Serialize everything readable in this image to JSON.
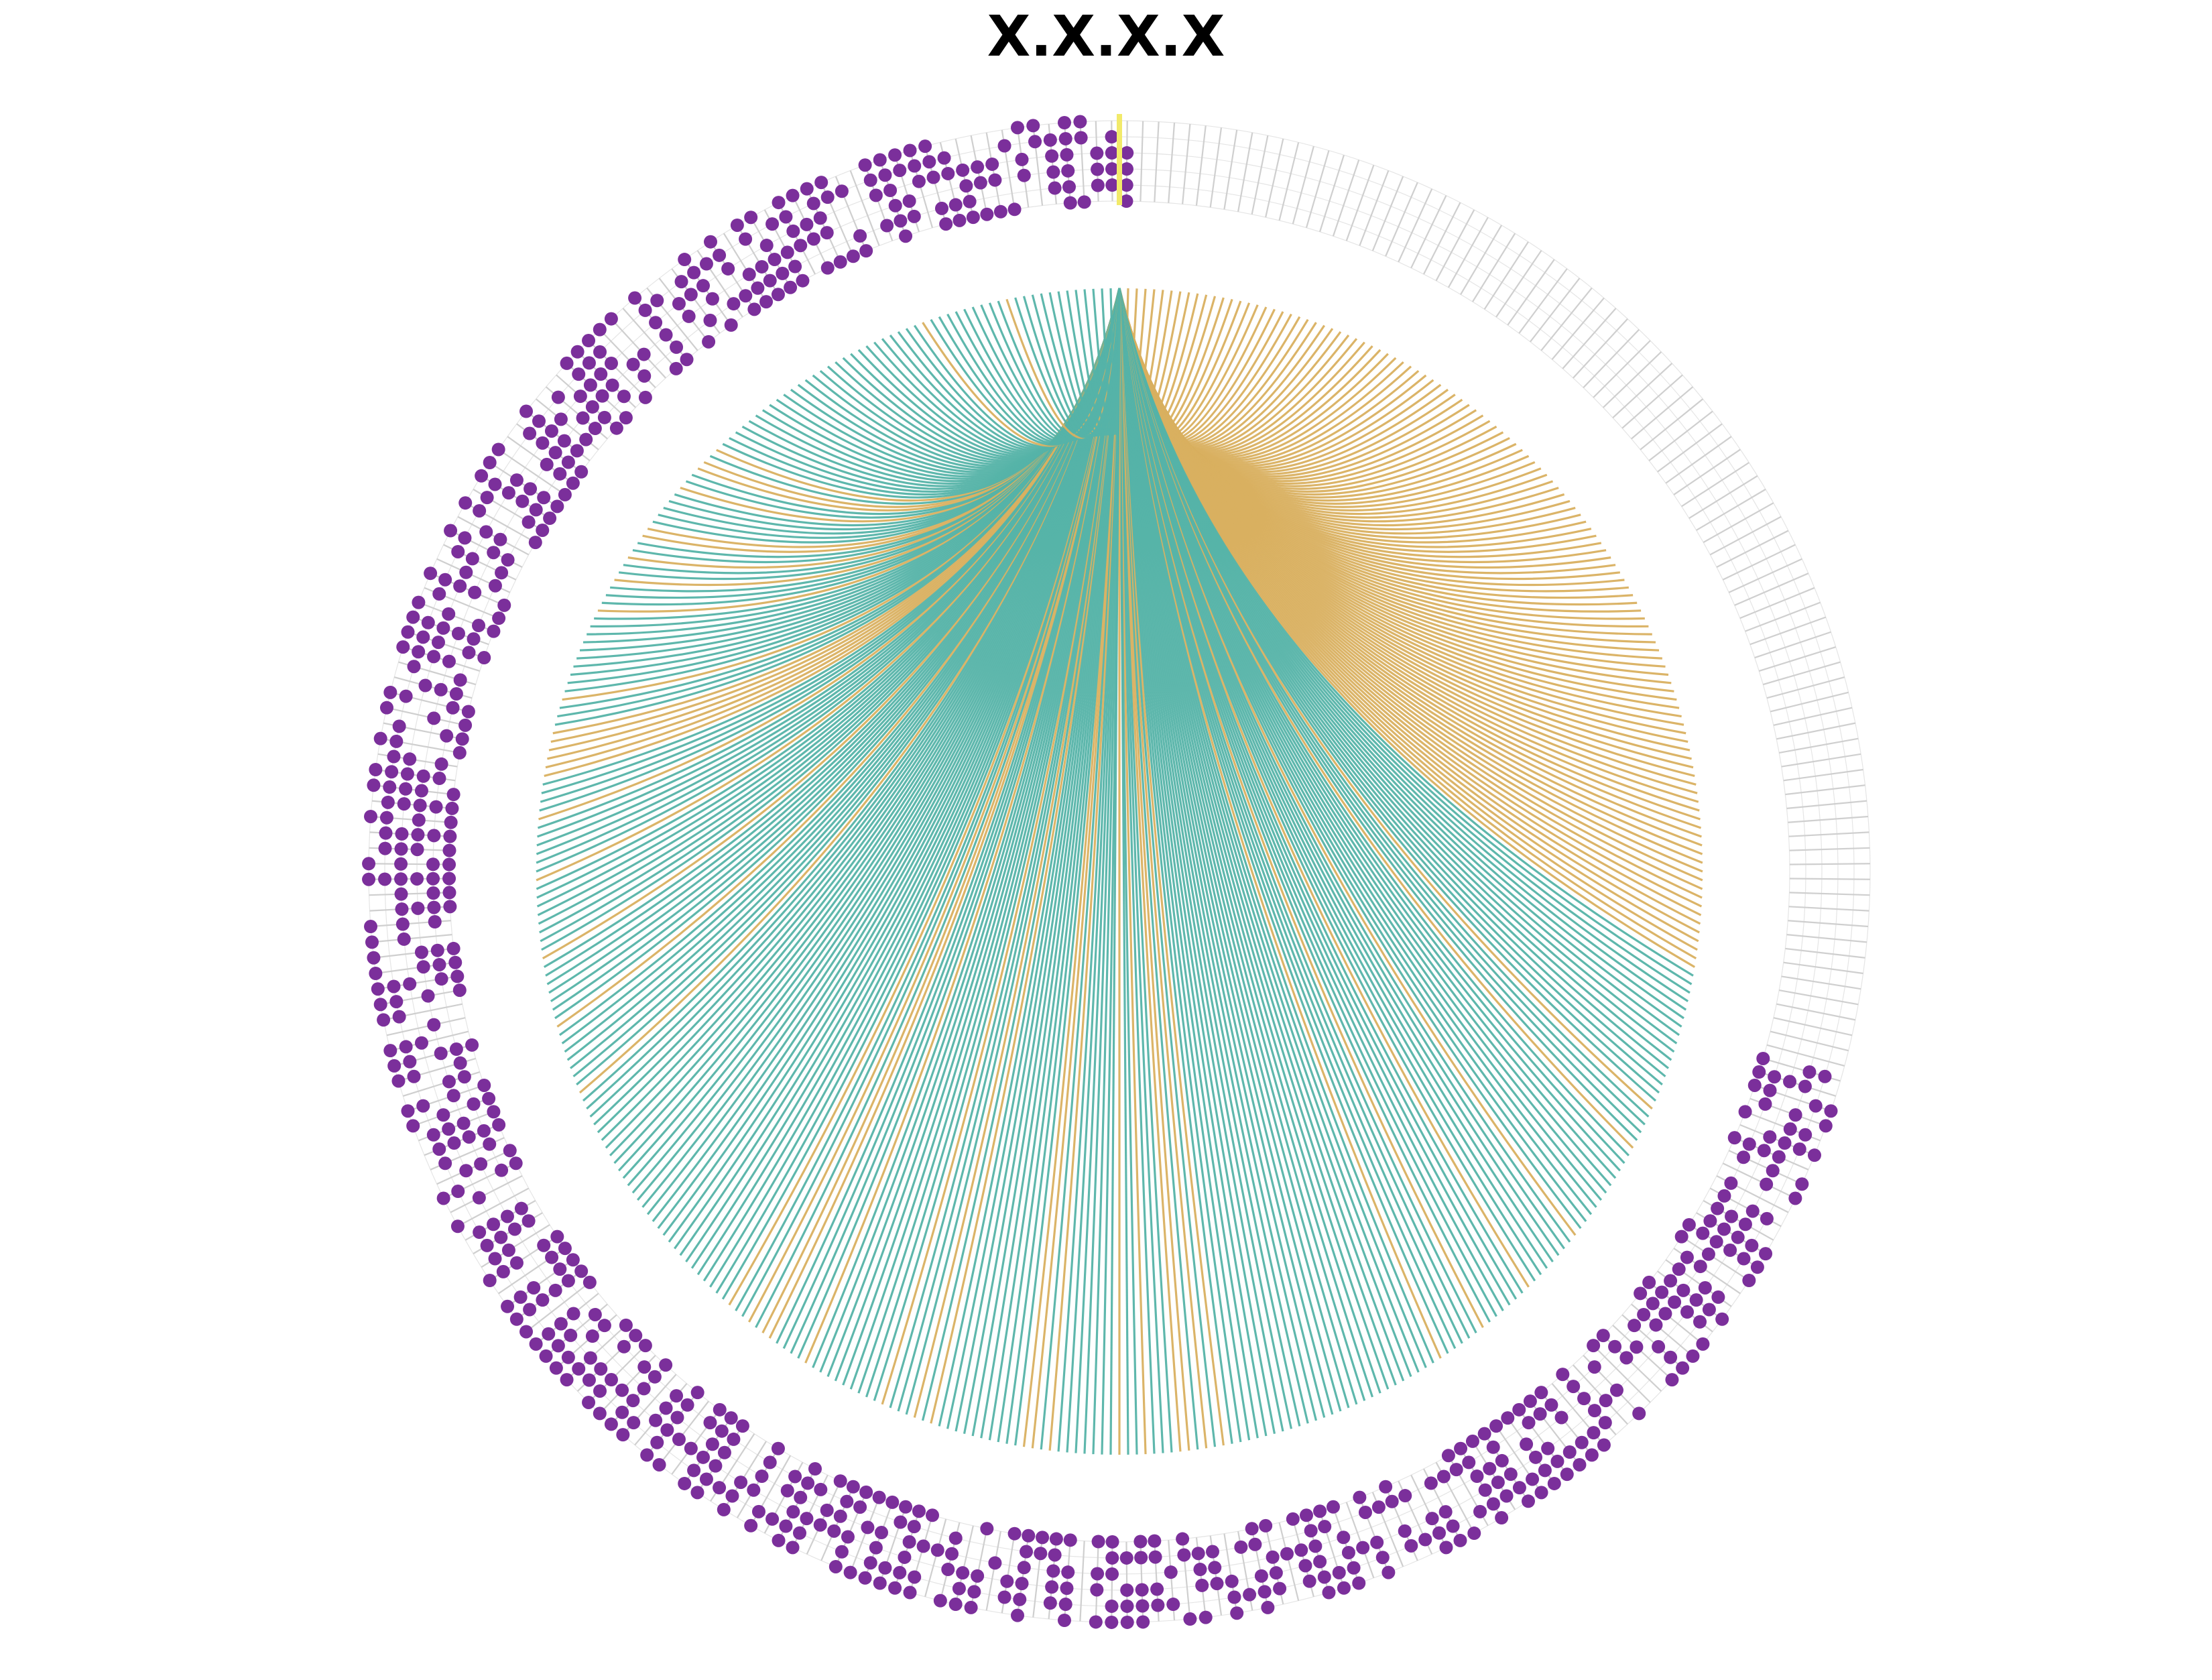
{
  "title": "X.X.X.X",
  "diagram": {
    "type": "circular-tree",
    "colors": {
      "background": "#ffffff",
      "tree_branch": "#cfcfcf",
      "occupied_dot": "#7b2f9b",
      "highlight_leaf": "#f2ea6a",
      "inner_link_teal": "#55b3a8",
      "inner_link_gold": "#d9b060"
    }
  }
}
